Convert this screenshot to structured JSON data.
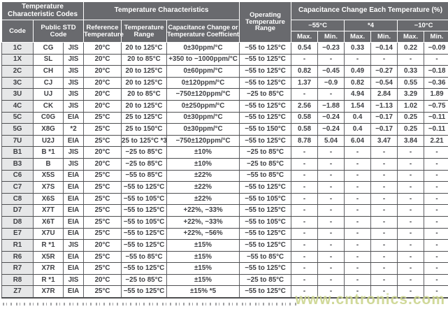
{
  "table": {
    "header": {
      "group_codes": "Temperature Characteristic Codes",
      "group_chars": "Temperature Characteristics",
      "op_range": "Operating Temperature Range",
      "group_cap": "Capacitance Change Each Temperature (%)",
      "code": "Code",
      "public_std": "Public STD Code",
      "ref_temp": "Reference Temperature",
      "temp_range": "Temperature Range",
      "cap_change": "Capacitance Change or Temperature Coefficient",
      "t_m55": "−55°C",
      "t_s4": "*4",
      "t_m10": "−10°C",
      "max": "Max.",
      "min": "Min."
    },
    "rows": [
      {
        "code": "1C",
        "std_code": "CG",
        "std_org": "JIS",
        "ref_temp": "20°C",
        "temp_range": "20 to 125°C",
        "cap_change": "0±30ppm/°C",
        "op_range": "−55 to 125°C",
        "m55_max": "0.54",
        "m55_min": "−0.23",
        "s4_max": "0.33",
        "s4_min": "−0.14",
        "m10_max": "0.22",
        "m10_min": "−0.09"
      },
      {
        "code": "1X",
        "std_code": "SL",
        "std_org": "JIS",
        "ref_temp": "20°C",
        "temp_range": "20 to 85°C",
        "cap_change": "+350 to −1000ppm/°C",
        "op_range": "−55 to 125°C",
        "m55_max": "-",
        "m55_min": "-",
        "s4_max": "-",
        "s4_min": "-",
        "m10_max": "-",
        "m10_min": "-"
      },
      {
        "code": "2C",
        "std_code": "CH",
        "std_org": "JIS",
        "ref_temp": "20°C",
        "temp_range": "20 to 125°C",
        "cap_change": "0±60ppm/°C",
        "op_range": "−55 to 125°C",
        "m55_max": "0.82",
        "m55_min": "−0.45",
        "s4_max": "0.49",
        "s4_min": "−0.27",
        "m10_max": "0.33",
        "m10_min": "−0.18"
      },
      {
        "code": "3C",
        "std_code": "CJ",
        "std_org": "JIS",
        "ref_temp": "20°C",
        "temp_range": "20 to 125°C",
        "cap_change": "0±120ppm/°C",
        "op_range": "−55 to 125°C",
        "m55_max": "1.37",
        "m55_min": "−0.9",
        "s4_max": "0.82",
        "s4_min": "−0.54",
        "m10_max": "0.55",
        "m10_min": "−0.36"
      },
      {
        "code": "3U",
        "std_code": "UJ",
        "std_org": "JIS",
        "ref_temp": "20°C",
        "temp_range": "20 to 85°C",
        "cap_change": "−750±120ppm/°C",
        "op_range": "−25 to 85°C",
        "m55_max": "-",
        "m55_min": "-",
        "s4_max": "4.94",
        "s4_min": "2.84",
        "m10_max": "3.29",
        "m10_min": "1.89"
      },
      {
        "code": "4C",
        "std_code": "CK",
        "std_org": "JIS",
        "ref_temp": "20°C",
        "temp_range": "20 to 125°C",
        "cap_change": "0±250ppm/°C",
        "op_range": "−55 to 125°C",
        "m55_max": "2.56",
        "m55_min": "−1.88",
        "s4_max": "1.54",
        "s4_min": "−1.13",
        "m10_max": "1.02",
        "m10_min": "−0.75"
      },
      {
        "code": "5C",
        "std_code": "C0G",
        "std_org": "EIA",
        "ref_temp": "25°C",
        "temp_range": "25 to 125°C",
        "cap_change": "0±30ppm/°C",
        "op_range": "−55 to 125°C",
        "m55_max": "0.58",
        "m55_min": "−0.24",
        "s4_max": "0.4",
        "s4_min": "−0.17",
        "m10_max": "0.25",
        "m10_min": "−0.11"
      },
      {
        "code": "5G",
        "std_code": "X8G",
        "std_org": "*2",
        "ref_temp": "25°C",
        "temp_range": "25 to 150°C",
        "cap_change": "0±30ppm/°C",
        "op_range": "−55 to 150°C",
        "m55_max": "0.58",
        "m55_min": "−0.24",
        "s4_max": "0.4",
        "s4_min": "−0.17",
        "m10_max": "0.25",
        "m10_min": "−0.11"
      },
      {
        "code": "7U",
        "std_code": "U2J",
        "std_org": "EIA",
        "ref_temp": "25°C",
        "temp_range": "25 to 125°C *3",
        "cap_change": "−750±120ppm/°C",
        "op_range": "−55 to 125°C",
        "m55_max": "8.78",
        "m55_min": "5.04",
        "s4_max": "6.04",
        "s4_min": "3.47",
        "m10_max": "3.84",
        "m10_min": "2.21"
      },
      {
        "code": "B1",
        "std_code": "B *1",
        "std_org": "JIS",
        "ref_temp": "20°C",
        "temp_range": "−25 to 85°C",
        "cap_change": "±10%",
        "op_range": "−25 to 85°C",
        "m55_max": "-",
        "m55_min": "-",
        "s4_max": "-",
        "s4_min": "-",
        "m10_max": "-",
        "m10_min": "-"
      },
      {
        "code": "B3",
        "std_code": "B",
        "std_org": "JIS",
        "ref_temp": "20°C",
        "temp_range": "−25 to 85°C",
        "cap_change": "±10%",
        "op_range": "−25 to 85°C",
        "m55_max": "-",
        "m55_min": "-",
        "s4_max": "-",
        "s4_min": "-",
        "m10_max": "-",
        "m10_min": "-"
      },
      {
        "code": "C6",
        "std_code": "X5S",
        "std_org": "EIA",
        "ref_temp": "25°C",
        "temp_range": "−55 to 85°C",
        "cap_change": "±22%",
        "op_range": "−55 to 85°C",
        "m55_max": "-",
        "m55_min": "-",
        "s4_max": "-",
        "s4_min": "-",
        "m10_max": "-",
        "m10_min": "-"
      },
      {
        "code": "C7",
        "std_code": "X7S",
        "std_org": "EIA",
        "ref_temp": "25°C",
        "temp_range": "−55 to 125°C",
        "cap_change": "±22%",
        "op_range": "−55 to 125°C",
        "m55_max": "-",
        "m55_min": "-",
        "s4_max": "-",
        "s4_min": "-",
        "m10_max": "-",
        "m10_min": "-"
      },
      {
        "code": "C8",
        "std_code": "X6S",
        "std_org": "EIA",
        "ref_temp": "25°C",
        "temp_range": "−55 to 105°C",
        "cap_change": "±22%",
        "op_range": "−55 to 105°C",
        "m55_max": "-",
        "m55_min": "-",
        "s4_max": "-",
        "s4_min": "-",
        "m10_max": "-",
        "m10_min": "-"
      },
      {
        "code": "D7",
        "std_code": "X7T",
        "std_org": "EIA",
        "ref_temp": "25°C",
        "temp_range": "−55 to 125°C",
        "cap_change": "+22%, −33%",
        "op_range": "−55 to 125°C",
        "m55_max": "-",
        "m55_min": "-",
        "s4_max": "-",
        "s4_min": "-",
        "m10_max": "-",
        "m10_min": "-"
      },
      {
        "code": "D8",
        "std_code": "X6T",
        "std_org": "EIA",
        "ref_temp": "25°C",
        "temp_range": "−55 to 105°C",
        "cap_change": "+22%, −33%",
        "op_range": "−55 to 105°C",
        "m55_max": "-",
        "m55_min": "-",
        "s4_max": "-",
        "s4_min": "-",
        "m10_max": "-",
        "m10_min": "-"
      },
      {
        "code": "E7",
        "std_code": "X7U",
        "std_org": "EIA",
        "ref_temp": "25°C",
        "temp_range": "−55 to 125°C",
        "cap_change": "+22%, −56%",
        "op_range": "−55 to 125°C",
        "m55_max": "-",
        "m55_min": "-",
        "s4_max": "-",
        "s4_min": "-",
        "m10_max": "-",
        "m10_min": "-"
      },
      {
        "code": "R1",
        "std_code": "R *1",
        "std_org": "JIS",
        "ref_temp": "20°C",
        "temp_range": "−55 to 125°C",
        "cap_change": "±15%",
        "op_range": "−55 to 125°C",
        "m55_max": "-",
        "m55_min": "-",
        "s4_max": "-",
        "s4_min": "-",
        "m10_max": "-",
        "m10_min": "-"
      },
      {
        "code": "R6",
        "std_code": "X5R",
        "std_org": "EIA",
        "ref_temp": "25°C",
        "temp_range": "−55 to 85°C",
        "cap_change": "±15%",
        "op_range": "−55 to 85°C",
        "m55_max": "-",
        "m55_min": "-",
        "s4_max": "-",
        "s4_min": "-",
        "m10_max": "-",
        "m10_min": "-"
      },
      {
        "code": "R7",
        "std_code": "X7R",
        "std_org": "EIA",
        "ref_temp": "25°C",
        "temp_range": "−55 to 125°C",
        "cap_change": "±15%",
        "op_range": "−55 to 125°C",
        "m55_max": "-",
        "m55_min": "-",
        "s4_max": "-",
        "s4_min": "-",
        "m10_max": "-",
        "m10_min": "-"
      },
      {
        "code": "R8",
        "std_code": "R *1",
        "std_org": "JIS",
        "ref_temp": "20°C",
        "temp_range": "−25 to 85°C",
        "cap_change": "±15%",
        "op_range": "−25 to 85°C",
        "m55_max": "-",
        "m55_min": "-",
        "s4_max": "-",
        "s4_min": "-",
        "m10_max": "-",
        "m10_min": "-"
      },
      {
        "code": "Z7",
        "std_code": "X7R",
        "std_org": "EIA",
        "ref_temp": "25°C",
        "temp_range": "−55 to 125°C",
        "cap_change": "±15% *5",
        "op_range": "−55 to 125°C",
        "m55_max": "-",
        "m55_min": "-",
        "s4_max": "-",
        "s4_min": "-",
        "m10_max": "-",
        "m10_min": "-"
      }
    ]
  },
  "watermark": "www.cntronics.com",
  "colors": {
    "header_bg": "#696a6e",
    "code_col_bg": "#e6e7e8",
    "grid": "#4e4f51",
    "text": "#3e3f43",
    "watermark": "#ccd58f"
  }
}
